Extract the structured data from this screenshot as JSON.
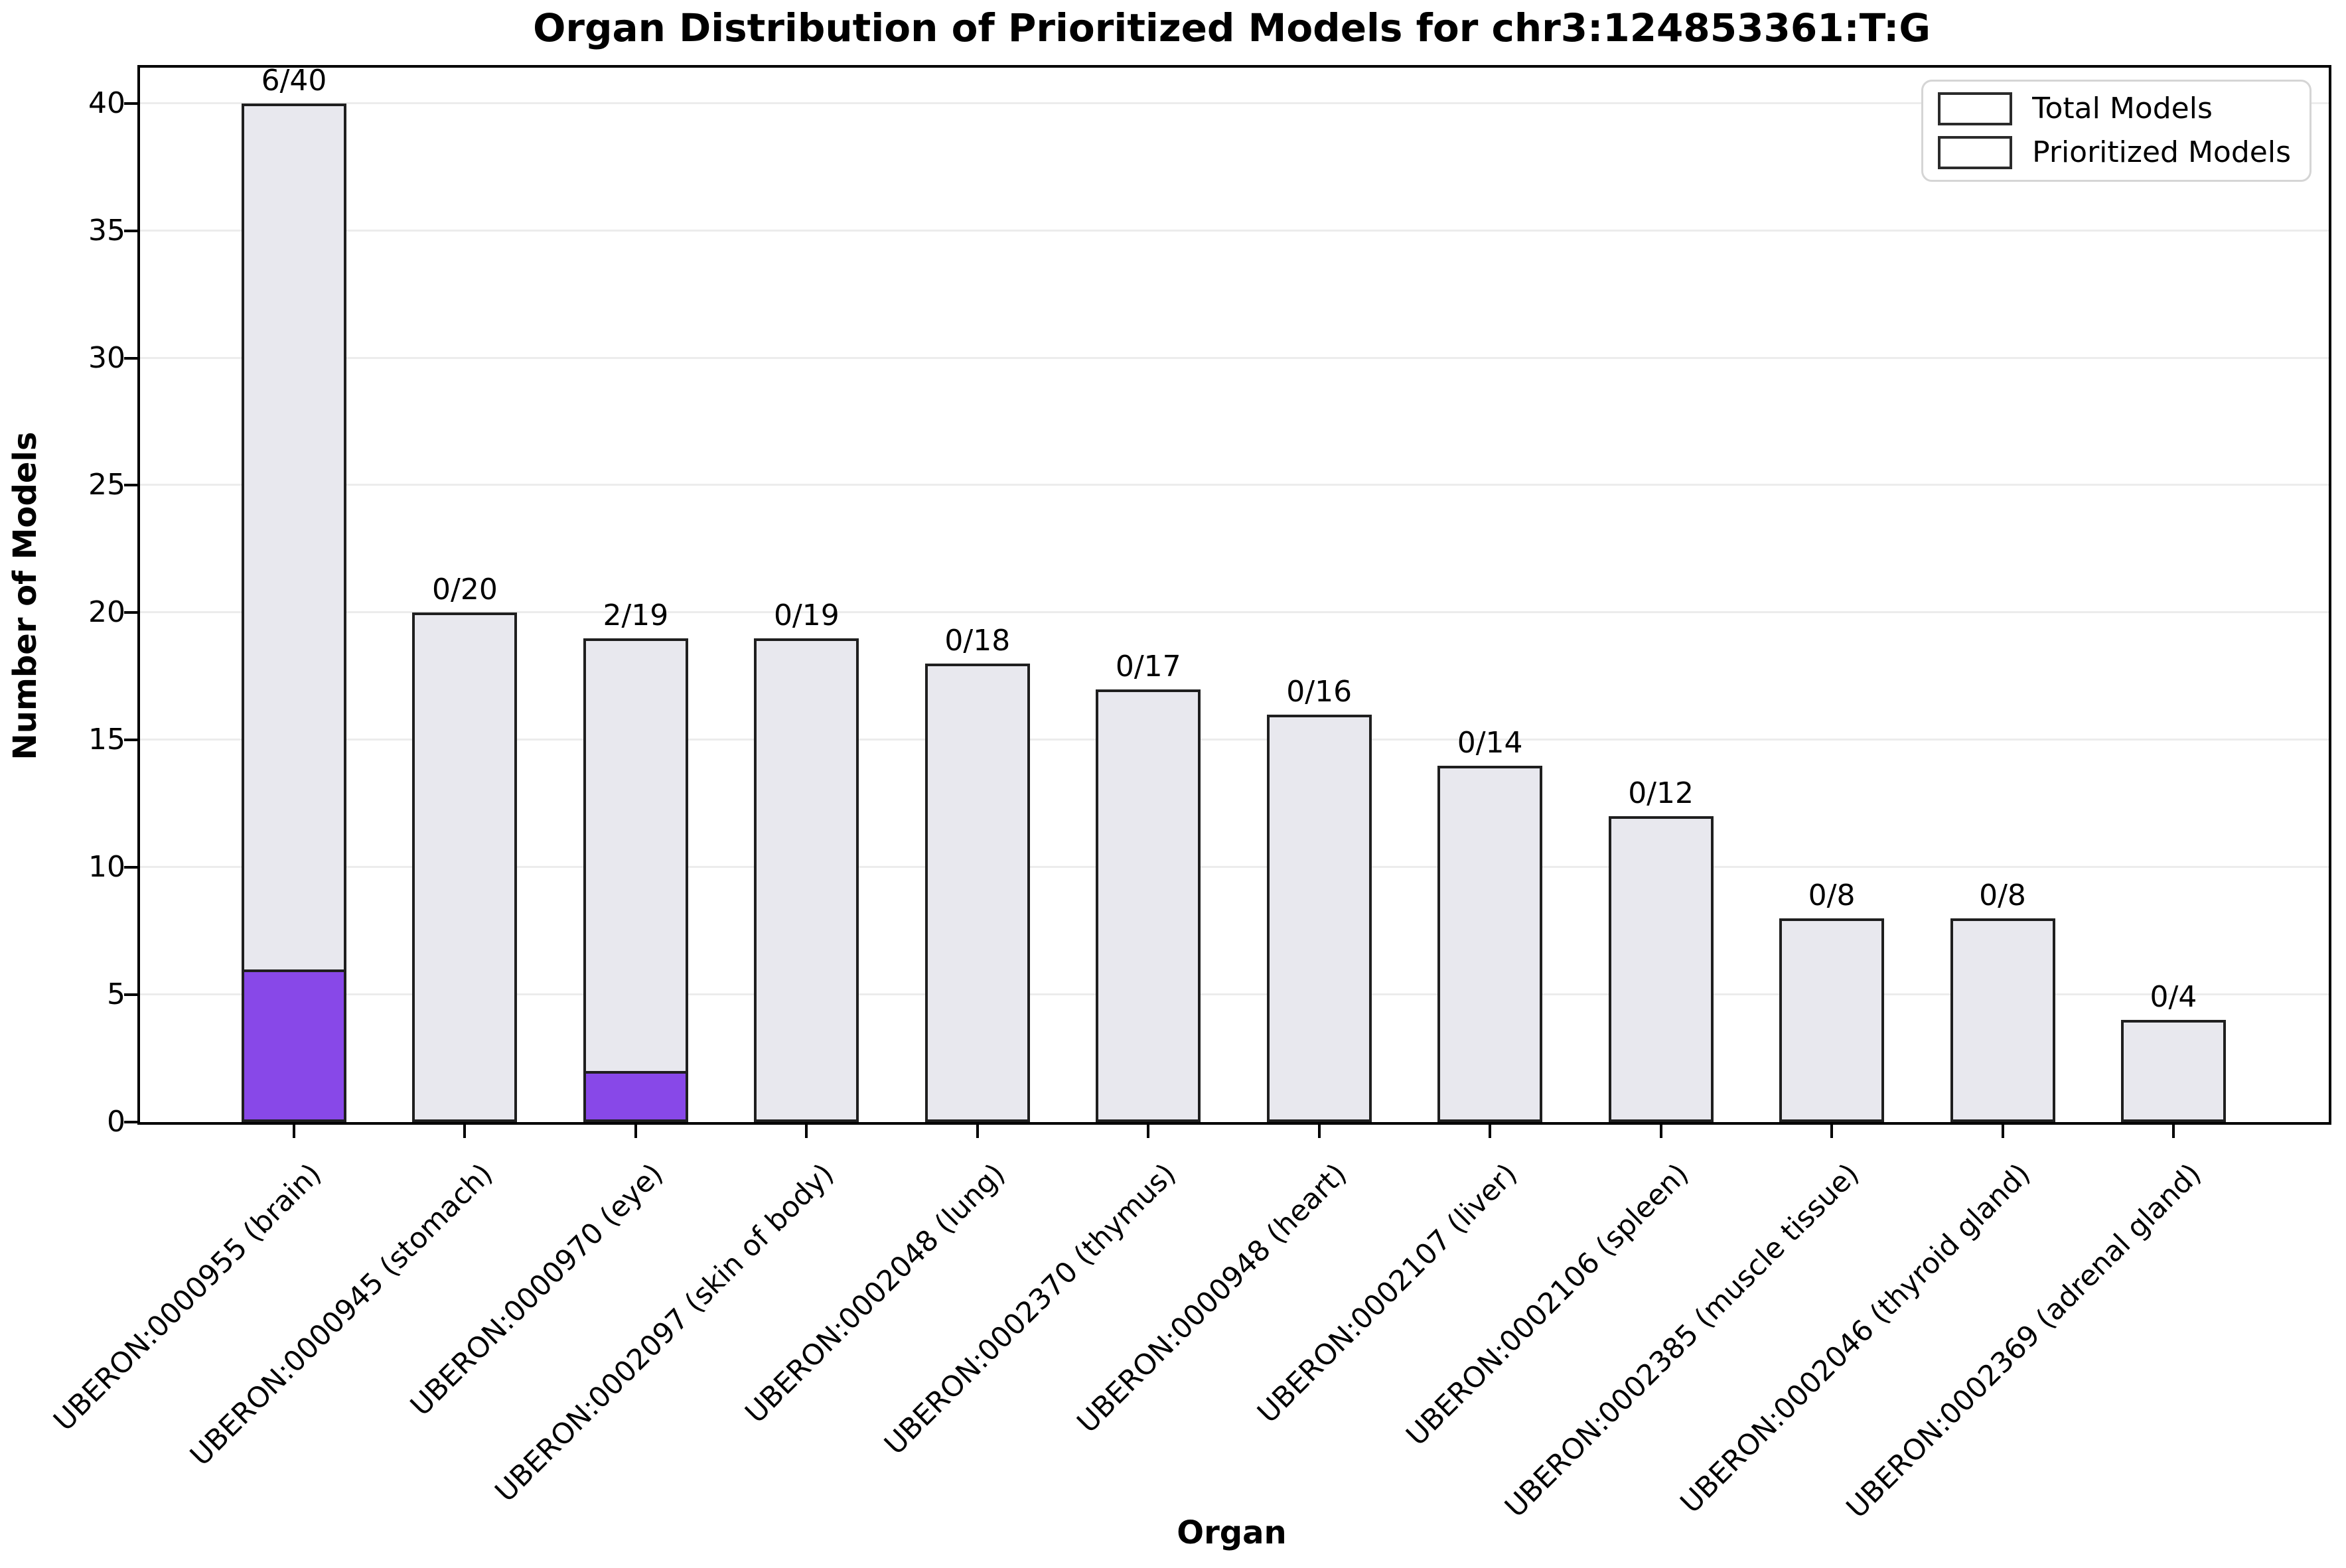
{
  "title": "Organ Distribution of Prioritized Models for chr3:124853361:T:G",
  "chart_data": {
    "type": "bar",
    "title": "Organ Distribution of Prioritized Models for chr3:124853361:T:G",
    "xlabel": "Organ",
    "ylabel": "Number of Models",
    "ylim": [
      0,
      41.4
    ],
    "yticks": [
      0,
      5,
      10,
      15,
      20,
      25,
      30,
      35,
      40
    ],
    "grid": true,
    "categories": [
      "UBERON:0000955 (brain)",
      "UBERON:0000945 (stomach)",
      "UBERON:0000970 (eye)",
      "UBERON:0002097 (skin of body)",
      "UBERON:0002048 (lung)",
      "UBERON:0002370 (thymus)",
      "UBERON:0000948 (heart)",
      "UBERON:0002107 (liver)",
      "UBERON:0002106 (spleen)",
      "UBERON:0002385 (muscle tissue)",
      "UBERON:0002046 (thyroid gland)",
      "UBERON:0002369 (adrenal gland)"
    ],
    "series": [
      {
        "name": "Total Models",
        "color": "#e8e8ee",
        "values": [
          40,
          20,
          19,
          19,
          18,
          17,
          16,
          14,
          12,
          8,
          8,
          4
        ]
      },
      {
        "name": "Prioritized Models",
        "color": "#8848e8",
        "values": [
          6,
          0,
          2,
          0,
          0,
          0,
          0,
          0,
          0,
          0,
          0,
          0
        ]
      }
    ],
    "annotations": [
      "6/40",
      "0/20",
      "2/19",
      "0/19",
      "0/18",
      "0/17",
      "0/16",
      "0/14",
      "0/12",
      "0/8",
      "0/8",
      "0/4"
    ],
    "legend": {
      "position": "upper right",
      "entries": [
        "Total Models",
        "Prioritized Models"
      ]
    },
    "bar_edge_color": "#1f1f1f",
    "grid_color": "#ececec"
  }
}
